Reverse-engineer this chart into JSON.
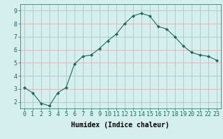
{
  "x": [
    0,
    1,
    2,
    3,
    4,
    5,
    6,
    7,
    8,
    9,
    10,
    11,
    12,
    13,
    14,
    15,
    16,
    17,
    18,
    19,
    20,
    21,
    22,
    23
  ],
  "y": [
    3.1,
    2.7,
    1.9,
    1.7,
    2.7,
    3.1,
    4.9,
    5.5,
    5.6,
    6.1,
    6.7,
    7.2,
    8.0,
    8.6,
    8.8,
    8.6,
    7.8,
    7.6,
    7.0,
    6.3,
    5.8,
    5.6,
    5.5,
    5.2
  ],
  "line_color": "#1a6b5a",
  "marker": "D",
  "marker_size": 2.0,
  "bg_color": "#d5eeee",
  "grid_color": "#d8a8a8",
  "xlabel": "Humidex (Indice chaleur)",
  "xlim": [
    -0.5,
    23.5
  ],
  "ylim": [
    1.5,
    9.5
  ],
  "yticks": [
    2,
    3,
    4,
    5,
    6,
    7,
    8,
    9
  ],
  "xticks": [
    0,
    1,
    2,
    3,
    4,
    5,
    6,
    7,
    8,
    9,
    10,
    11,
    12,
    13,
    14,
    15,
    16,
    17,
    18,
    19,
    20,
    21,
    22,
    23
  ],
  "label_fontsize": 7.0,
  "tick_fontsize": 6.0
}
